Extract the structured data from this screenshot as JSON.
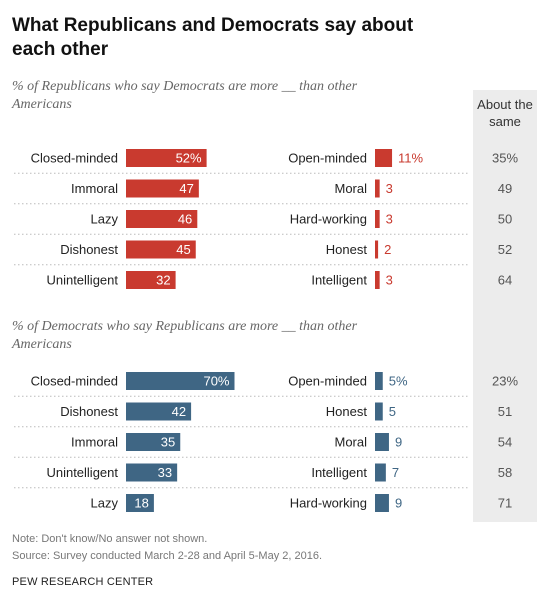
{
  "title": "What Republicans and Democrats say about each other",
  "about_same_header": "About the same",
  "note": "Note: Don't know/No answer not shown.",
  "source": "Source: Survey conducted March 2-28 and April 5-May 2, 2016.",
  "organization": "PEW RESEARCH CENTER",
  "colors": {
    "republican": "#c93a2f",
    "democrat": "#3f6684"
  },
  "chart_data": [
    {
      "type": "bar",
      "group": "republicans",
      "subtitle": "% of Republicans who say Democrats are more __ than other Americans",
      "series": [
        {
          "name": "",
          "categories": [
            "Closed-minded",
            "Immoral",
            "Lazy",
            "Dishonest",
            "Unintelligent"
          ],
          "values": [
            52,
            47,
            46,
            45,
            32
          ],
          "labels": [
            "52%",
            "47",
            "46",
            "45",
            "32"
          ]
        },
        {
          "name": "",
          "categories": [
            "Open-minded",
            "Moral",
            "Hard-working",
            "Honest",
            "Intelligent"
          ],
          "values": [
            11,
            3,
            3,
            2,
            3
          ],
          "labels": [
            "11%",
            "3",
            "3",
            "2",
            "3"
          ]
        },
        {
          "name": "About the same",
          "values": [
            35,
            49,
            50,
            52,
            64
          ],
          "labels": [
            "35%",
            "49",
            "50",
            "52",
            "64"
          ]
        }
      ]
    },
    {
      "type": "bar",
      "group": "democrats",
      "subtitle": "% of Democrats who say Republicans are more __ than other Americans",
      "series": [
        {
          "name": "",
          "categories": [
            "Closed-minded",
            "Dishonest",
            "Immoral",
            "Unintelligent",
            "Lazy"
          ],
          "values": [
            70,
            42,
            35,
            33,
            18
          ],
          "labels": [
            "70%",
            "42",
            "35",
            "33",
            "18"
          ]
        },
        {
          "name": "",
          "categories": [
            "Open-minded",
            "Honest",
            "Moral",
            "Intelligent",
            "Hard-working"
          ],
          "values": [
            5,
            5,
            9,
            7,
            9
          ],
          "labels": [
            "5%",
            "5",
            "9",
            "7",
            "9"
          ]
        },
        {
          "name": "About the same",
          "values": [
            23,
            51,
            54,
            58,
            71
          ],
          "labels": [
            "23%",
            "51",
            "54",
            "58",
            "71"
          ]
        }
      ]
    }
  ]
}
